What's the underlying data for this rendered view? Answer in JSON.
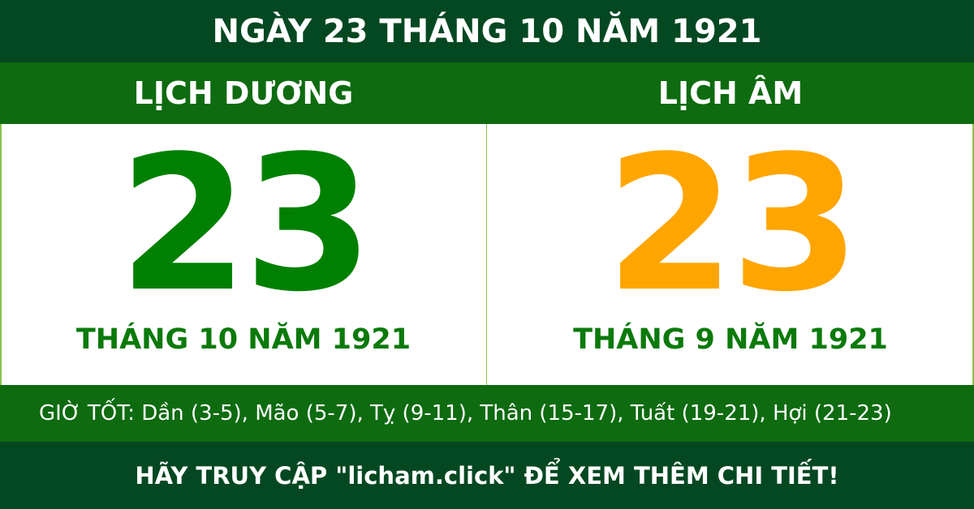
{
  "title": "NGÀY 23 THÁNG 10 NĂM 1921",
  "solar": {
    "heading": "LỊCH DƯƠNG",
    "day": "23",
    "month_year": "THÁNG 10 NĂM 1921",
    "color": "#008000"
  },
  "lunar": {
    "heading": "LỊCH ÂM",
    "day": "23",
    "month_year": "THÁNG 9 NĂM 1921",
    "color": "#ffa500"
  },
  "good_hours": "GIỜ TỐT: Dần (3-5), Mão (5-7), Tỵ (9-11), Thân (15-17), Tuất (19-21), Hợi (21-23)",
  "footer": "HÃY TRUY CẬP \"licham.click\" ĐỂ XEM THÊM CHI TIẾT!"
}
